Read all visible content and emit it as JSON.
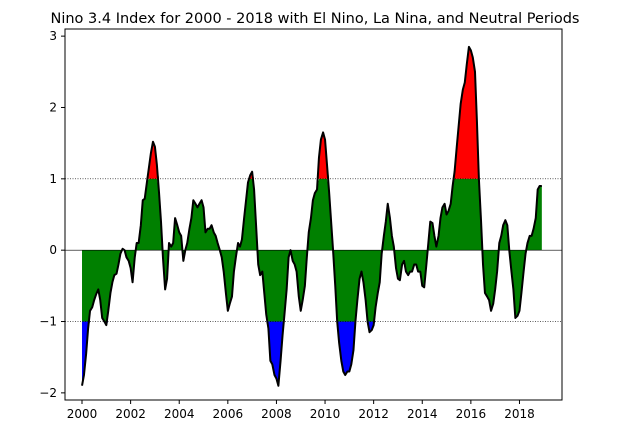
{
  "chart_data": {
    "type": "area",
    "title": "Nino 3.4 Index for 2000 - 2018 with El Nino, La Nina, and Neutral Periods",
    "xlabel": "",
    "ylabel": "",
    "xlim": [
      1999.3,
      2019.75
    ],
    "ylim": [
      -2.1,
      3.1
    ],
    "x_ticks": [
      2000,
      2002,
      2004,
      2006,
      2008,
      2010,
      2012,
      2014,
      2016,
      2018
    ],
    "x_tick_labels": [
      "2000",
      "2002",
      "2004",
      "2006",
      "2008",
      "2010",
      "2012",
      "2014",
      "2016",
      "2018"
    ],
    "y_ticks": [
      -2,
      -1,
      0,
      1,
      2,
      3
    ],
    "y_tick_labels": [
      "−2",
      "−1",
      "0",
      "1",
      "2",
      "3"
    ],
    "thresholds": {
      "el_nino": 1.0,
      "la_nina": -1.0,
      "zero": 0.0
    },
    "colors": {
      "el_nino": "#ff0000",
      "la_nina": "#0000ff",
      "neutral": "#008000",
      "line": "#000000",
      "threshold_line": "#000000"
    },
    "grid": false,
    "legend": "none",
    "series": [
      {
        "points": [
          [
            2000.0,
            -1.9
          ],
          [
            2000.08,
            -1.75
          ],
          [
            2000.17,
            -1.45
          ],
          [
            2000.25,
            -1.1
          ],
          [
            2000.33,
            -0.85
          ],
          [
            2000.42,
            -0.8
          ],
          [
            2000.5,
            -0.7
          ],
          [
            2000.58,
            -0.62
          ],
          [
            2000.67,
            -0.55
          ],
          [
            2000.75,
            -0.7
          ],
          [
            2000.83,
            -0.95
          ],
          [
            2000.92,
            -1.0
          ],
          [
            2001.0,
            -1.05
          ],
          [
            2001.08,
            -0.85
          ],
          [
            2001.17,
            -0.6
          ],
          [
            2001.25,
            -0.45
          ],
          [
            2001.33,
            -0.35
          ],
          [
            2001.42,
            -0.33
          ],
          [
            2001.5,
            -0.2
          ],
          [
            2001.58,
            -0.05
          ],
          [
            2001.67,
            0.02
          ],
          [
            2001.75,
            0.0
          ],
          [
            2001.83,
            -0.1
          ],
          [
            2001.92,
            -0.15
          ],
          [
            2002.0,
            -0.25
          ],
          [
            2002.08,
            -0.45
          ],
          [
            2002.17,
            -0.1
          ],
          [
            2002.25,
            0.1
          ],
          [
            2002.33,
            0.1
          ],
          [
            2002.42,
            0.35
          ],
          [
            2002.5,
            0.7
          ],
          [
            2002.58,
            0.72
          ],
          [
            2002.67,
            0.95
          ],
          [
            2002.75,
            1.15
          ],
          [
            2002.83,
            1.35
          ],
          [
            2002.92,
            1.52
          ],
          [
            2003.0,
            1.45
          ],
          [
            2003.08,
            1.2
          ],
          [
            2003.17,
            0.8
          ],
          [
            2003.25,
            0.4
          ],
          [
            2003.33,
            -0.1
          ],
          [
            2003.42,
            -0.55
          ],
          [
            2003.5,
            -0.4
          ],
          [
            2003.58,
            0.1
          ],
          [
            2003.67,
            0.05
          ],
          [
            2003.75,
            0.1
          ],
          [
            2003.83,
            0.45
          ],
          [
            2003.92,
            0.35
          ],
          [
            2004.0,
            0.25
          ],
          [
            2004.08,
            0.2
          ],
          [
            2004.17,
            -0.15
          ],
          [
            2004.25,
            0.0
          ],
          [
            2004.33,
            0.1
          ],
          [
            2004.42,
            0.3
          ],
          [
            2004.5,
            0.45
          ],
          [
            2004.58,
            0.7
          ],
          [
            2004.67,
            0.65
          ],
          [
            2004.75,
            0.6
          ],
          [
            2004.83,
            0.65
          ],
          [
            2004.92,
            0.7
          ],
          [
            2005.0,
            0.6
          ],
          [
            2005.08,
            0.25
          ],
          [
            2005.17,
            0.3
          ],
          [
            2005.25,
            0.3
          ],
          [
            2005.33,
            0.35
          ],
          [
            2005.42,
            0.25
          ],
          [
            2005.5,
            0.2
          ],
          [
            2005.58,
            0.1
          ],
          [
            2005.67,
            0.0
          ],
          [
            2005.75,
            -0.1
          ],
          [
            2005.83,
            -0.3
          ],
          [
            2005.92,
            -0.6
          ],
          [
            2006.0,
            -0.85
          ],
          [
            2006.08,
            -0.75
          ],
          [
            2006.17,
            -0.65
          ],
          [
            2006.25,
            -0.3
          ],
          [
            2006.33,
            -0.1
          ],
          [
            2006.42,
            0.1
          ],
          [
            2006.5,
            0.05
          ],
          [
            2006.58,
            0.15
          ],
          [
            2006.67,
            0.45
          ],
          [
            2006.75,
            0.7
          ],
          [
            2006.83,
            0.95
          ],
          [
            2006.92,
            1.05
          ],
          [
            2007.0,
            1.1
          ],
          [
            2007.08,
            0.85
          ],
          [
            2007.17,
            0.3
          ],
          [
            2007.25,
            -0.2
          ],
          [
            2007.33,
            -0.35
          ],
          [
            2007.42,
            -0.3
          ],
          [
            2007.5,
            -0.6
          ],
          [
            2007.58,
            -0.9
          ],
          [
            2007.67,
            -1.1
          ],
          [
            2007.75,
            -1.55
          ],
          [
            2007.83,
            -1.6
          ],
          [
            2007.92,
            -1.75
          ],
          [
            2008.0,
            -1.8
          ],
          [
            2008.08,
            -1.9
          ],
          [
            2008.17,
            -1.55
          ],
          [
            2008.25,
            -1.2
          ],
          [
            2008.33,
            -0.9
          ],
          [
            2008.42,
            -0.55
          ],
          [
            2008.5,
            -0.1
          ],
          [
            2008.58,
            0.0
          ],
          [
            2008.67,
            -0.15
          ],
          [
            2008.75,
            -0.2
          ],
          [
            2008.83,
            -0.3
          ],
          [
            2008.92,
            -0.65
          ],
          [
            2009.0,
            -0.85
          ],
          [
            2009.08,
            -0.7
          ],
          [
            2009.17,
            -0.5
          ],
          [
            2009.25,
            -0.1
          ],
          [
            2009.33,
            0.25
          ],
          [
            2009.42,
            0.45
          ],
          [
            2009.5,
            0.7
          ],
          [
            2009.58,
            0.8
          ],
          [
            2009.67,
            0.85
          ],
          [
            2009.75,
            1.3
          ],
          [
            2009.83,
            1.55
          ],
          [
            2009.92,
            1.65
          ],
          [
            2010.0,
            1.55
          ],
          [
            2010.08,
            1.2
          ],
          [
            2010.17,
            0.8
          ],
          [
            2010.25,
            0.4
          ],
          [
            2010.33,
            0.0
          ],
          [
            2010.42,
            -0.5
          ],
          [
            2010.5,
            -1.0
          ],
          [
            2010.58,
            -1.3
          ],
          [
            2010.67,
            -1.55
          ],
          [
            2010.75,
            -1.7
          ],
          [
            2010.83,
            -1.75
          ],
          [
            2010.92,
            -1.7
          ],
          [
            2011.0,
            -1.7
          ],
          [
            2011.08,
            -1.6
          ],
          [
            2011.17,
            -1.4
          ],
          [
            2011.25,
            -1.0
          ],
          [
            2011.33,
            -0.7
          ],
          [
            2011.42,
            -0.4
          ],
          [
            2011.5,
            -0.3
          ],
          [
            2011.58,
            -0.45
          ],
          [
            2011.67,
            -0.7
          ],
          [
            2011.75,
            -1.0
          ],
          [
            2011.83,
            -1.15
          ],
          [
            2011.92,
            -1.12
          ],
          [
            2012.0,
            -1.05
          ],
          [
            2012.08,
            -0.8
          ],
          [
            2012.17,
            -0.6
          ],
          [
            2012.25,
            -0.45
          ],
          [
            2012.33,
            -0.05
          ],
          [
            2012.42,
            0.2
          ],
          [
            2012.5,
            0.4
          ],
          [
            2012.58,
            0.65
          ],
          [
            2012.67,
            0.45
          ],
          [
            2012.75,
            0.2
          ],
          [
            2012.83,
            0.05
          ],
          [
            2012.92,
            -0.25
          ],
          [
            2013.0,
            -0.4
          ],
          [
            2013.08,
            -0.42
          ],
          [
            2013.17,
            -0.2
          ],
          [
            2013.25,
            -0.15
          ],
          [
            2013.33,
            -0.3
          ],
          [
            2013.42,
            -0.35
          ],
          [
            2013.5,
            -0.3
          ],
          [
            2013.58,
            -0.3
          ],
          [
            2013.67,
            -0.2
          ],
          [
            2013.75,
            -0.2
          ],
          [
            2013.83,
            -0.3
          ],
          [
            2013.92,
            -0.3
          ],
          [
            2014.0,
            -0.5
          ],
          [
            2014.08,
            -0.52
          ],
          [
            2014.17,
            -0.2
          ],
          [
            2014.25,
            0.1
          ],
          [
            2014.33,
            0.4
          ],
          [
            2014.42,
            0.38
          ],
          [
            2014.5,
            0.2
          ],
          [
            2014.58,
            0.05
          ],
          [
            2014.67,
            0.2
          ],
          [
            2014.75,
            0.45
          ],
          [
            2014.83,
            0.6
          ],
          [
            2014.92,
            0.65
          ],
          [
            2015.0,
            0.5
          ],
          [
            2015.08,
            0.55
          ],
          [
            2015.17,
            0.65
          ],
          [
            2015.25,
            0.9
          ],
          [
            2015.33,
            1.1
          ],
          [
            2015.42,
            1.45
          ],
          [
            2015.5,
            1.75
          ],
          [
            2015.58,
            2.05
          ],
          [
            2015.67,
            2.25
          ],
          [
            2015.75,
            2.35
          ],
          [
            2015.83,
            2.6
          ],
          [
            2015.92,
            2.85
          ],
          [
            2016.0,
            2.8
          ],
          [
            2016.08,
            2.7
          ],
          [
            2016.17,
            2.5
          ],
          [
            2016.25,
            1.8
          ],
          [
            2016.33,
            1.0
          ],
          [
            2016.42,
            0.4
          ],
          [
            2016.5,
            -0.2
          ],
          [
            2016.58,
            -0.6
          ],
          [
            2016.67,
            -0.65
          ],
          [
            2016.75,
            -0.7
          ],
          [
            2016.83,
            -0.85
          ],
          [
            2016.92,
            -0.75
          ],
          [
            2017.0,
            -0.55
          ],
          [
            2017.08,
            -0.3
          ],
          [
            2017.17,
            0.1
          ],
          [
            2017.25,
            0.2
          ],
          [
            2017.33,
            0.35
          ],
          [
            2017.42,
            0.42
          ],
          [
            2017.5,
            0.35
          ],
          [
            2017.58,
            0.0
          ],
          [
            2017.67,
            -0.3
          ],
          [
            2017.75,
            -0.55
          ],
          [
            2017.83,
            -0.95
          ],
          [
            2017.92,
            -0.92
          ],
          [
            2018.0,
            -0.85
          ],
          [
            2018.08,
            -0.6
          ],
          [
            2018.17,
            -0.3
          ],
          [
            2018.25,
            -0.05
          ],
          [
            2018.33,
            0.1
          ],
          [
            2018.42,
            0.2
          ],
          [
            2018.5,
            0.2
          ],
          [
            2018.58,
            0.3
          ],
          [
            2018.67,
            0.45
          ],
          [
            2018.75,
            0.85
          ],
          [
            2018.83,
            0.9
          ],
          [
            2018.92,
            0.9
          ]
        ]
      }
    ]
  }
}
